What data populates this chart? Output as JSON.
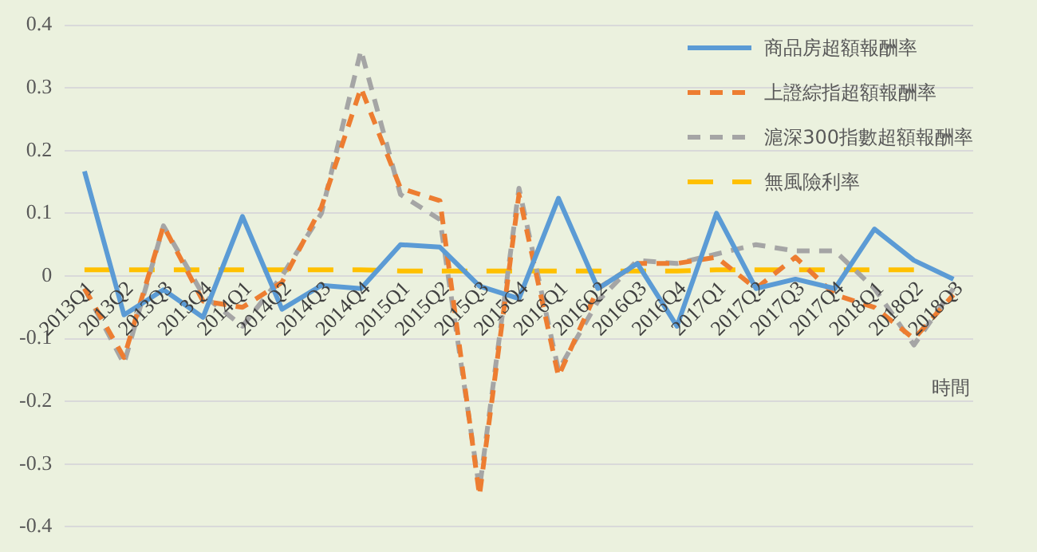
{
  "chart_data": {
    "type": "line",
    "xlabel": "時間",
    "categories": [
      "2013Q1",
      "2013Q2",
      "2013Q3",
      "2013Q4",
      "2014Q1",
      "2014Q2",
      "2014Q3",
      "2014Q4",
      "2015Q1",
      "2015Q2",
      "2015Q3",
      "2015Q4",
      "2016Q1",
      "2016Q2",
      "2016Q3",
      "2016Q4",
      "2017Q1",
      "2017Q2",
      "2017Q3",
      "2017Q4",
      "2018Q1",
      "2018Q2",
      "2018Q3"
    ],
    "series": [
      {
        "name": "商品房超額報酬率",
        "color": "#5b9bd5",
        "line_style": "solid",
        "values": [
          0.167,
          -0.062,
          -0.022,
          -0.066,
          0.095,
          -0.053,
          -0.015,
          -0.02,
          0.05,
          0.046,
          -0.016,
          -0.036,
          0.124,
          -0.02,
          0.02,
          -0.08,
          0.1,
          -0.02,
          -0.005,
          -0.02,
          0.075,
          0.025,
          -0.005
        ]
      },
      {
        "name": "上證綜指超額報酬率",
        "color": "#ed7d31",
        "line_style": "dashed",
        "values": [
          -0.02,
          -0.13,
          0.08,
          -0.04,
          -0.05,
          -0.01,
          0.11,
          0.3,
          0.14,
          0.12,
          -0.35,
          0.13,
          -0.16,
          -0.02,
          0.02,
          0.02,
          0.03,
          -0.02,
          0.03,
          -0.03,
          -0.05,
          -0.1,
          -0.03
        ]
      },
      {
        "name": "滬深300指數超額報酬率",
        "color": "#a5a5a5",
        "line_style": "dashed",
        "values": [
          -0.02,
          -0.14,
          0.08,
          -0.03,
          -0.08,
          0.0,
          0.1,
          0.36,
          0.13,
          0.09,
          -0.34,
          0.14,
          -0.15,
          -0.04,
          0.025,
          0.02,
          0.035,
          0.05,
          0.04,
          0.04,
          -0.02,
          -0.11,
          -0.02
        ]
      },
      {
        "name": "無風險利率",
        "color": "#ffc000",
        "line_style": "dashed",
        "values": [
          0.01,
          0.01,
          0.01,
          0.01,
          0.01,
          0.01,
          0.01,
          0.01,
          0.008,
          0.008,
          0.008,
          0.008,
          0.008,
          0.008,
          0.008,
          0.008,
          0.01,
          0.01,
          0.01,
          0.01,
          0.01,
          0.01,
          null
        ]
      }
    ],
    "ylim": [
      -0.4,
      0.4
    ],
    "yticks": [
      -0.4,
      -0.3,
      -0.2,
      -0.1,
      0,
      0.1,
      0.2,
      0.3,
      0.4
    ],
    "grid": "y",
    "legend": "top right",
    "marker": "none"
  }
}
